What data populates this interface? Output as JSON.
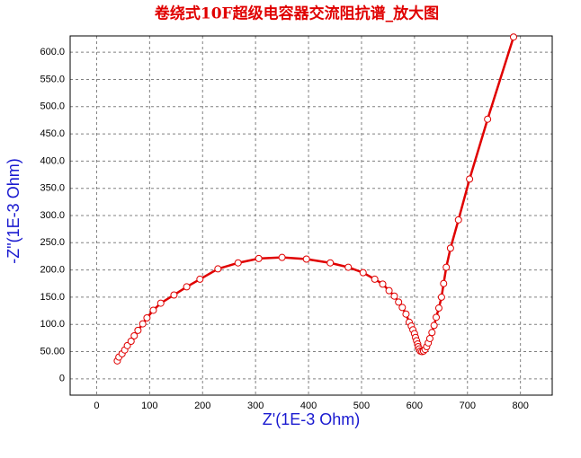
{
  "chart_data": {
    "type": "line",
    "title": "卷绕式10F超级电容器交流阻抗谱_放大图",
    "x_label": "Z'(1E-3 Ohm)",
    "y_label": "-Z\"(1E-3 Ohm)",
    "color": "#e00000",
    "grid": true,
    "xlim": [
      -50,
      860
    ],
    "ylim": [
      -30,
      630
    ],
    "xticks": [
      0,
      100,
      200,
      300,
      400,
      500,
      600,
      700,
      800
    ],
    "yticks": [
      0,
      {
        "value": 50,
        "label": "50.00"
      },
      {
        "value": 100,
        "label": "100.0"
      },
      {
        "value": 150,
        "label": "150.0"
      },
      {
        "value": 200,
        "label": "200.0"
      },
      {
        "value": 250,
        "label": "250.0"
      },
      {
        "value": 300,
        "label": "300.0"
      },
      {
        "value": 350,
        "label": "350.0"
      },
      {
        "value": 400,
        "label": "400.0"
      },
      {
        "value": 450,
        "label": "450.0"
      },
      {
        "value": 500,
        "label": "500.0"
      },
      {
        "value": 550,
        "label": "550.0"
      },
      {
        "value": 600,
        "label": "600.0"
      }
    ],
    "x": [
      39,
      42,
      48,
      53,
      58,
      65,
      71,
      78,
      87,
      95,
      107,
      121,
      146,
      170,
      195,
      229,
      267,
      306,
      350,
      396,
      441,
      475,
      503,
      525,
      540,
      552,
      562,
      570,
      577,
      584,
      590,
      594,
      597,
      600,
      602,
      604,
      606,
      607,
      609,
      611,
      614,
      617,
      620,
      623,
      626,
      629,
      633,
      637,
      641,
      646,
      651,
      655,
      660,
      668,
      683,
      704,
      738,
      787
    ],
    "values": [
      33,
      40,
      46,
      53,
      61,
      69,
      79,
      89,
      101,
      112,
      126,
      139,
      154,
      169,
      183,
      202,
      213,
      221,
      223,
      220,
      213,
      205,
      195,
      183,
      174,
      162,
      152,
      141,
      131,
      119,
      104,
      97,
      90,
      83,
      76,
      70,
      64,
      59,
      55,
      51,
      50,
      51,
      54,
      59,
      66,
      74,
      85,
      98,
      113,
      130,
      150,
      175,
      205,
      240,
      292,
      367,
      477,
      628
    ]
  }
}
